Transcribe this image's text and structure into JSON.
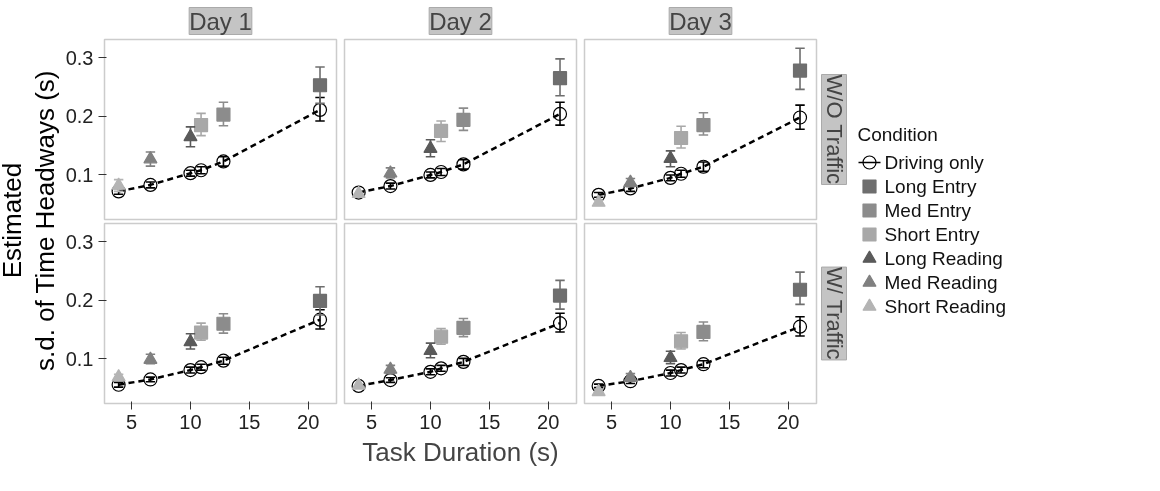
{
  "chart_data": [
    {
      "type": "scatter",
      "title": "Day 1",
      "ylabel": "Estimated\ns.d. of Time Headways (s)",
      "xlim": [
        2.7,
        22.4
      ],
      "ylim": [
        0.024,
        0.331
      ],
      "xticks": [
        5,
        10,
        15,
        20
      ],
      "yticks": [
        0.1,
        0.2,
        0.3
      ],
      "tick_labels": "y",
      "grid": false,
      "series": [
        {
          "type": "line",
          "line_style": "dashed",
          "marker": "circle",
          "color": "#000000",
          "x": [
            3.9,
            6.6,
            10,
            10.9,
            12.8,
            21
          ],
          "values": [
            0.072,
            0.083,
            0.103,
            0.108,
            0.123,
            0.211
          ],
          "errors": [
            0.005,
            0.005,
            0.005,
            0.006,
            0.008,
            [
              0.192,
              0.232
            ]
          ]
        },
        {
          "marker": "square",
          "color": "#6e6e6e",
          "x": [
            21
          ],
          "values": [
            0.253
          ],
          "errors": [
            [
              0.222,
              0.284
            ]
          ]
        },
        {
          "marker": "square",
          "color": "#8c8c8c",
          "x": [
            12.8
          ],
          "values": [
            0.203
          ],
          "errors": [
            [
              0.184,
              0.224
            ]
          ]
        },
        {
          "marker": "square",
          "color": "#a8a8a8",
          "x": [
            10.9
          ],
          "values": [
            0.185
          ],
          "errors": [
            [
              0.167,
              0.205
            ]
          ]
        },
        {
          "marker": "triangle",
          "color": "#5a5a5a",
          "x": [
            10
          ],
          "values": [
            0.165
          ],
          "errors": [
            [
              0.148,
              0.182
            ]
          ]
        },
        {
          "marker": "triangle",
          "color": "#808080",
          "x": [
            6.6
          ],
          "values": [
            0.127
          ],
          "errors": [
            [
              0.115,
              0.139
            ]
          ]
        },
        {
          "marker": "triangle",
          "color": "#b4b4b4",
          "x": [
            3.9
          ],
          "values": [
            0.082
          ],
          "errors": [
            [
              0.072,
              0.092
            ]
          ]
        }
      ]
    },
    {
      "type": "scatter",
      "title": "Day 2",
      "xlim": [
        2.7,
        22.4
      ],
      "ylim": [
        0.024,
        0.331
      ],
      "xticks": [
        5,
        10,
        15,
        20
      ],
      "yticks": [
        0.1,
        0.2,
        0.3
      ],
      "tick_labels": false,
      "grid": false,
      "series": [
        {
          "type": "line",
          "line_style": "dashed",
          "marker": "circle",
          "color": "#000000",
          "x": [
            3.9,
            6.6,
            10,
            10.9,
            12.8,
            21
          ],
          "values": [
            0.07,
            0.081,
            0.1,
            0.105,
            0.118,
            0.204
          ],
          "errors": [
            null,
            0.005,
            0.005,
            0.006,
            0.008,
            [
              0.185,
              0.224
            ]
          ]
        },
        {
          "marker": "square",
          "color": "#6e6e6e",
          "x": [
            21
          ],
          "values": [
            0.265
          ],
          "errors": [
            [
              0.235,
              0.298
            ]
          ]
        },
        {
          "marker": "square",
          "color": "#8c8c8c",
          "x": [
            12.8
          ],
          "values": [
            0.194
          ],
          "errors": [
            [
              0.176,
              0.214
            ]
          ]
        },
        {
          "marker": "square",
          "color": "#a8a8a8",
          "x": [
            10.9
          ],
          "values": [
            0.175
          ],
          "errors": [
            [
              0.157,
              0.192
            ]
          ]
        },
        {
          "marker": "triangle",
          "color": "#5a5a5a",
          "x": [
            10
          ],
          "values": [
            0.145
          ],
          "errors": [
            [
              0.131,
              0.16
            ]
          ]
        },
        {
          "marker": "triangle",
          "color": "#808080",
          "x": [
            6.6
          ],
          "values": [
            0.103
          ],
          "errors": [
            [
              0.095,
              0.112
            ]
          ]
        },
        {
          "marker": "triangle",
          "color": "#b4b4b4",
          "x": [
            3.9
          ],
          "values": [
            0.068
          ],
          "errors": [
            null
          ]
        }
      ]
    },
    {
      "type": "scatter",
      "title": "Day 3",
      "annotations": [
        "W/O Traffic"
      ],
      "legend": "right",
      "legend_title": "Condition",
      "xlim": [
        2.7,
        22.4
      ],
      "ylim": [
        0.024,
        0.331
      ],
      "xticks": [
        5,
        10,
        15,
        20
      ],
      "yticks": [
        0.1,
        0.2,
        0.3
      ],
      "tick_labels": false,
      "grid": false,
      "series": [
        {
          "name": "Driving only",
          "type": "line",
          "line_style": "dashed",
          "marker": "circle",
          "color": "#000000",
          "x": [
            3.9,
            6.6,
            10,
            10.9,
            12.8,
            21
          ],
          "values": [
            0.066,
            0.077,
            0.095,
            0.102,
            0.114,
            0.198
          ],
          "errors": [
            0.004,
            0.005,
            0.005,
            0.006,
            0.008,
            [
              0.178,
              0.219
            ]
          ]
        },
        {
          "name": "Long Entry",
          "marker": "square",
          "color": "#6e6e6e",
          "x": [
            21
          ],
          "values": [
            0.278
          ],
          "errors": [
            [
              0.246,
              0.316
            ]
          ]
        },
        {
          "name": "Med Entry",
          "marker": "square",
          "color": "#8c8c8c",
          "x": [
            12.8
          ],
          "values": [
            0.185
          ],
          "errors": [
            [
              0.168,
              0.206
            ]
          ]
        },
        {
          "name": "Short Entry",
          "marker": "square",
          "color": "#a8a8a8",
          "x": [
            10.9
          ],
          "values": [
            0.163
          ],
          "errors": [
            [
              0.146,
              0.183
            ]
          ]
        },
        {
          "name": "Long Reading",
          "marker": "triangle",
          "color": "#5a5a5a",
          "x": [
            10
          ],
          "values": [
            0.128
          ],
          "errors": [
            [
              0.114,
              0.141
            ]
          ]
        },
        {
          "name": "Med Reading",
          "marker": "triangle",
          "color": "#808080",
          "x": [
            6.6
          ],
          "values": [
            0.087
          ],
          "errors": [
            [
              0.08,
              0.094
            ]
          ]
        },
        {
          "name": "Short Reading",
          "marker": "triangle",
          "color": "#b4b4b4",
          "x": [
            3.9
          ],
          "values": [
            0.053
          ],
          "errors": [
            [
              0.049,
              0.057
            ]
          ]
        }
      ]
    },
    {
      "type": "scatter",
      "xlim": [
        2.7,
        22.4
      ],
      "ylim": [
        0.024,
        0.331
      ],
      "xticks": [
        5,
        10,
        15,
        20
      ],
      "yticks": [
        0.1,
        0.2,
        0.3
      ],
      "grid": false,
      "series": [
        {
          "type": "line",
          "line_style": "dashed",
          "marker": "circle",
          "color": "#000000",
          "x": [
            3.9,
            6.6,
            10,
            10.9,
            12.8,
            21
          ],
          "values": [
            0.056,
            0.065,
            0.081,
            0.086,
            0.097,
            0.167
          ],
          "errors": [
            0.004,
            0.004,
            0.005,
            0.005,
            0.006,
            [
              0.151,
              0.184
            ]
          ]
        },
        {
          "marker": "square",
          "color": "#6e6e6e",
          "x": [
            21
          ],
          "values": [
            0.199
          ],
          "errors": [
            [
              0.175,
              0.223
            ]
          ]
        },
        {
          "marker": "square",
          "color": "#8c8c8c",
          "x": [
            12.8
          ],
          "values": [
            0.16
          ],
          "errors": [
            [
              0.144,
              0.177
            ]
          ]
        },
        {
          "marker": "square",
          "color": "#a8a8a8",
          "x": [
            10.9
          ],
          "values": [
            0.145
          ],
          "errors": [
            [
              0.132,
              0.161
            ]
          ]
        },
        {
          "marker": "triangle",
          "color": "#5a5a5a",
          "x": [
            10
          ],
          "values": [
            0.129
          ],
          "errors": [
            [
              0.117,
              0.143
            ]
          ]
        },
        {
          "marker": "triangle",
          "color": "#808080",
          "x": [
            6.6
          ],
          "values": [
            0.099
          ],
          "errors": [
            [
              0.092,
              0.108
            ]
          ]
        },
        {
          "marker": "triangle",
          "color": "#b4b4b4",
          "x": [
            3.9
          ],
          "values": [
            0.069
          ],
          "errors": [
            [
              0.064,
              0.074
            ]
          ]
        }
      ]
    },
    {
      "type": "scatter",
      "xlabel": "Task Duration (s)",
      "xlim": [
        2.7,
        22.4
      ],
      "ylim": [
        0.024,
        0.331
      ],
      "xticks": [
        5,
        10,
        15,
        20
      ],
      "yticks": [
        0.1,
        0.2,
        0.3
      ],
      "tick_labels": "x",
      "grid": false,
      "series": [
        {
          "type": "line",
          "line_style": "dashed",
          "marker": "circle",
          "color": "#000000",
          "x": [
            3.9,
            6.6,
            10,
            10.9,
            12.8,
            21
          ],
          "values": [
            0.054,
            0.064,
            0.078,
            0.084,
            0.095,
            0.161
          ],
          "errors": [
            null,
            0.004,
            0.005,
            0.005,
            0.006,
            [
              0.146,
              0.178
            ]
          ]
        },
        {
          "marker": "square",
          "color": "#6e6e6e",
          "x": [
            21
          ],
          "values": [
            0.208
          ],
          "errors": [
            [
              0.185,
              0.234
            ]
          ]
        },
        {
          "marker": "square",
          "color": "#8c8c8c",
          "x": [
            12.8
          ],
          "values": [
            0.153
          ],
          "errors": [
            [
              0.138,
              0.169
            ]
          ]
        },
        {
          "marker": "square",
          "color": "#a8a8a8",
          "x": [
            10.9
          ],
          "values": [
            0.138
          ],
          "errors": [
            [
              0.125,
              0.152
            ]
          ]
        },
        {
          "marker": "triangle",
          "color": "#5a5a5a",
          "x": [
            10
          ],
          "values": [
            0.114
          ],
          "errors": [
            [
              0.102,
              0.127
            ]
          ]
        },
        {
          "marker": "triangle",
          "color": "#808080",
          "x": [
            6.6
          ],
          "values": [
            0.082
          ],
          "errors": [
            [
              0.075,
              0.089
            ]
          ]
        },
        {
          "marker": "triangle",
          "color": "#b4b4b4",
          "x": [
            3.9
          ],
          "values": [
            0.055
          ],
          "errors": [
            null
          ]
        }
      ]
    },
    {
      "type": "scatter",
      "annotations": [
        "W/ Traffic"
      ],
      "xlim": [
        2.7,
        22.4
      ],
      "ylim": [
        0.024,
        0.331
      ],
      "xticks": [
        5,
        10,
        15,
        20
      ],
      "yticks": [
        0.1,
        0.2,
        0.3
      ],
      "tick_labels": "x",
      "grid": false,
      "series": [
        {
          "type": "line",
          "line_style": "dashed",
          "marker": "circle",
          "color": "#000000",
          "x": [
            3.9,
            6.6,
            10,
            10.9,
            12.8,
            21
          ],
          "values": [
            0.054,
            0.062,
            0.076,
            0.081,
            0.091,
            0.155
          ],
          "errors": [
            0.003,
            0.004,
            0.005,
            0.005,
            0.006,
            [
              0.139,
              0.172
            ]
          ]
        },
        {
          "marker": "square",
          "color": "#6e6e6e",
          "x": [
            21
          ],
          "values": [
            0.218
          ],
          "errors": [
            [
              0.193,
              0.248
            ]
          ]
        },
        {
          "marker": "square",
          "color": "#8c8c8c",
          "x": [
            12.8
          ],
          "values": [
            0.146
          ],
          "errors": [
            [
              0.131,
              0.163
            ]
          ]
        },
        {
          "marker": "square",
          "color": "#a8a8a8",
          "x": [
            10.9
          ],
          "values": [
            0.13
          ],
          "errors": [
            [
              0.117,
              0.145
            ]
          ]
        },
        {
          "marker": "triangle",
          "color": "#5a5a5a",
          "x": [
            10
          ],
          "values": [
            0.102
          ],
          "errors": [
            [
              0.092,
              0.113
            ]
          ]
        },
        {
          "marker": "triangle",
          "color": "#808080",
          "x": [
            6.6
          ],
          "values": [
            0.068
          ],
          "errors": [
            [
              0.062,
              0.075
            ]
          ]
        },
        {
          "marker": "triangle",
          "color": "#b4b4b4",
          "x": [
            3.9
          ],
          "values": [
            0.044
          ],
          "errors": [
            [
              0.04,
              0.048
            ]
          ]
        }
      ]
    }
  ]
}
